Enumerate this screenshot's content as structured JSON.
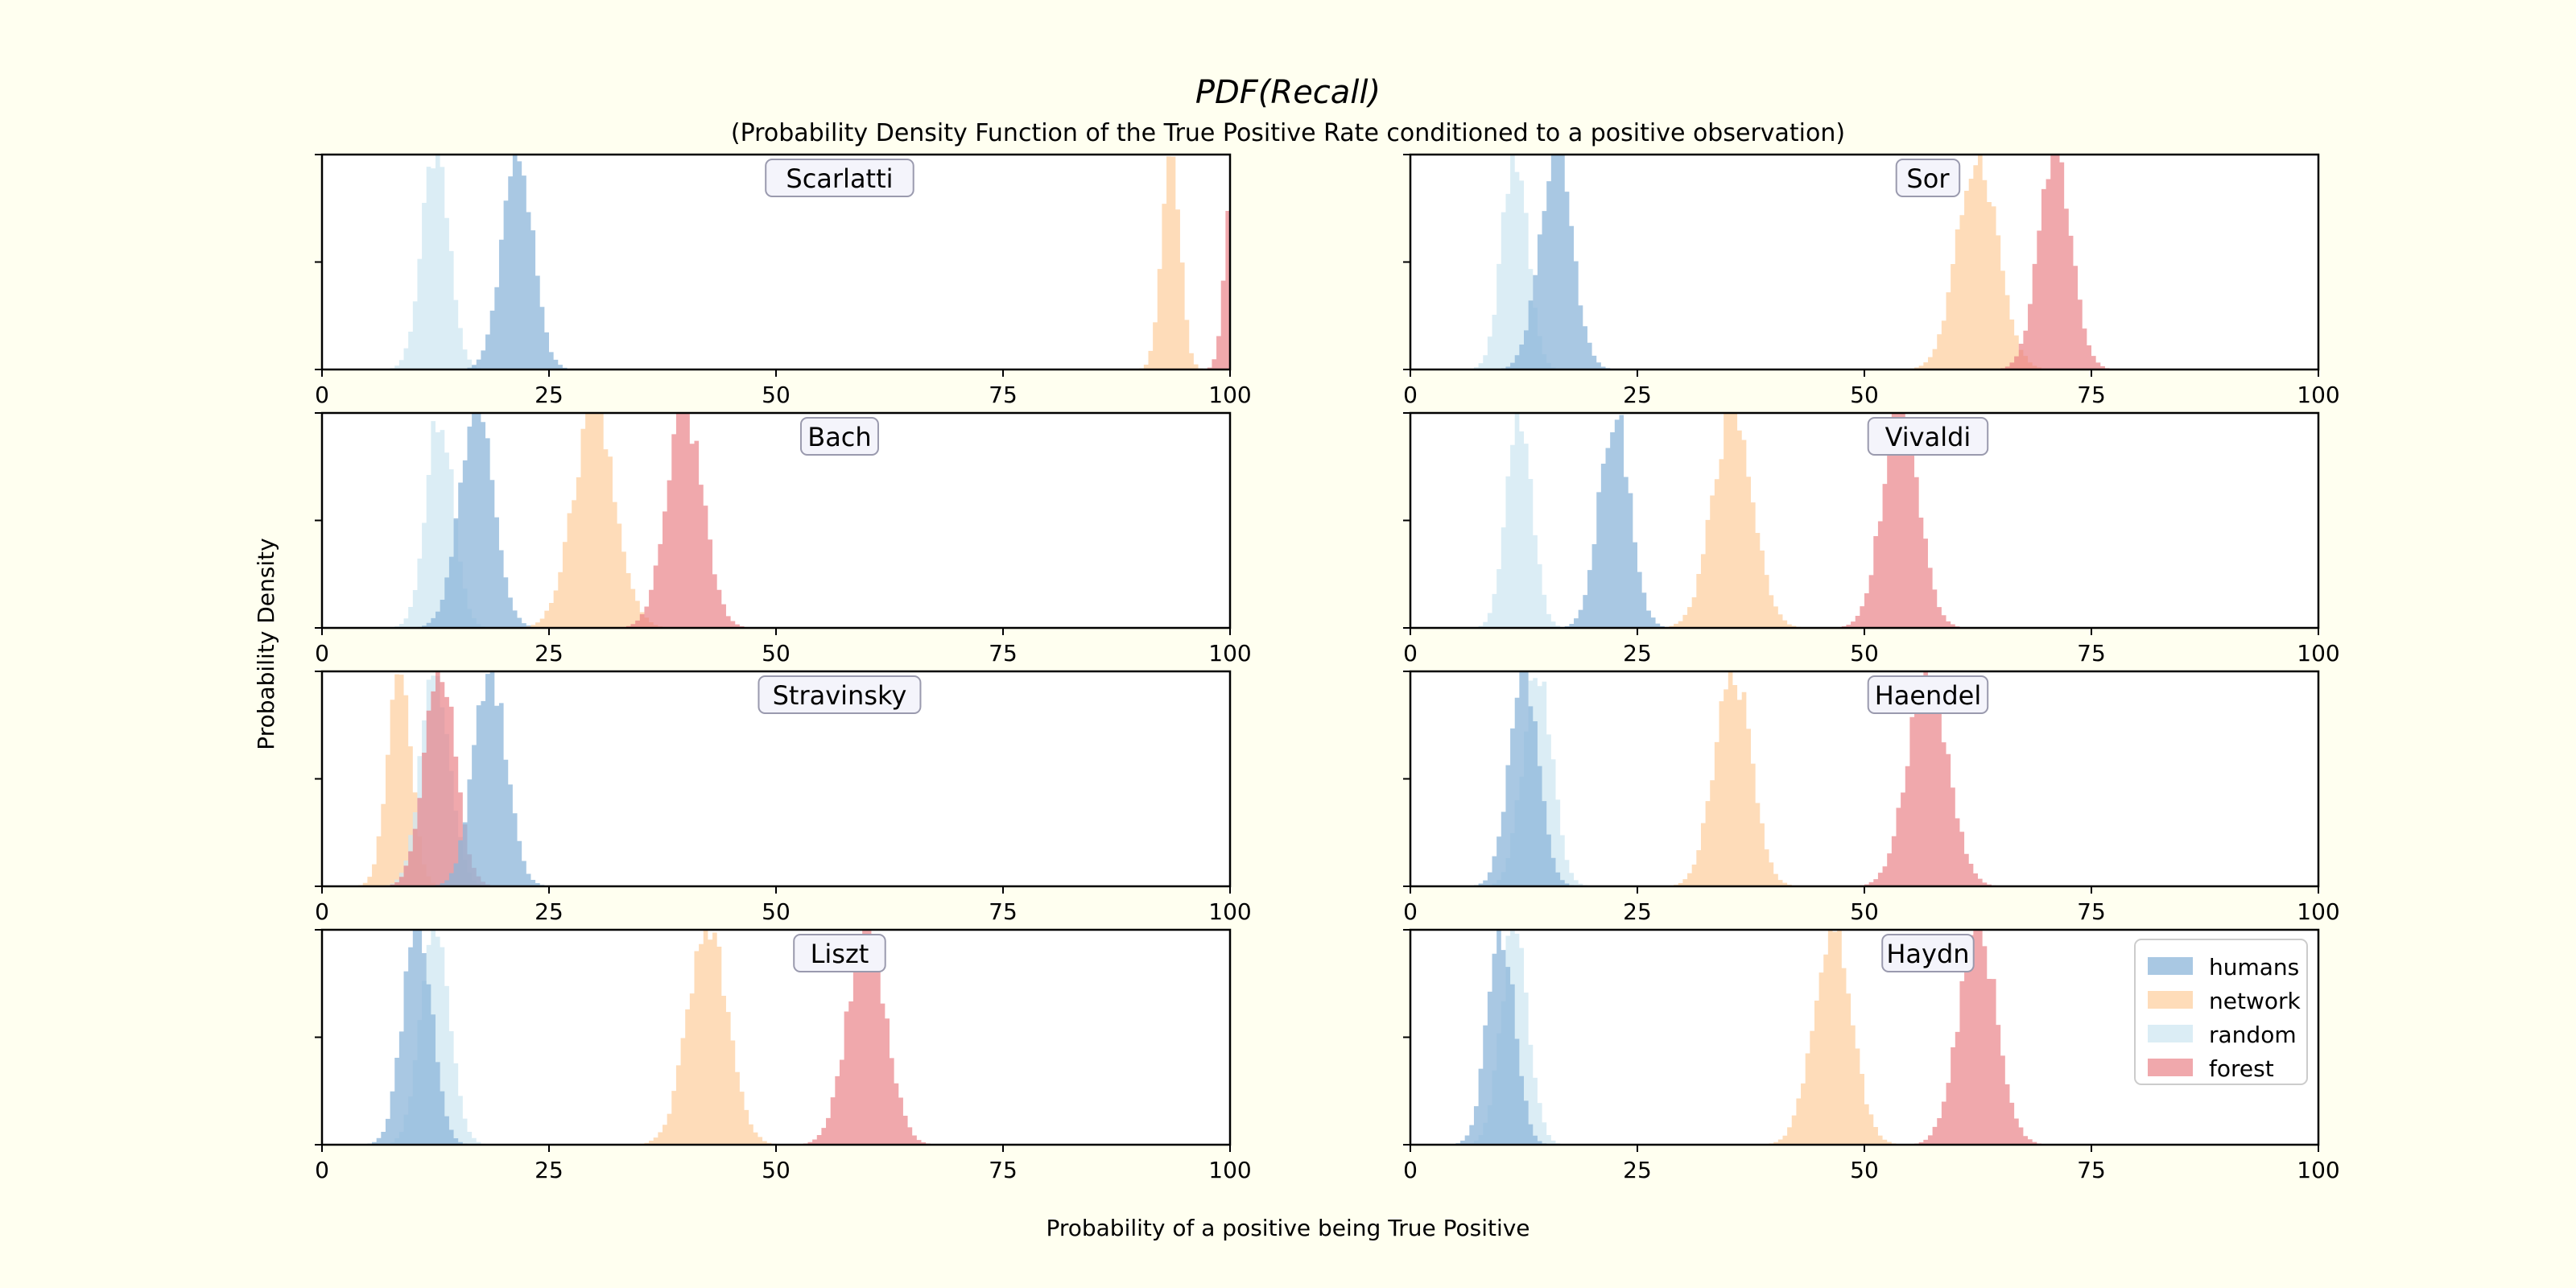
{
  "figure": {
    "title": "PDF(Recall)",
    "subtitle": "(Probability Density Function of the True Positive Rate conditioned to a positive observation)",
    "xlabel": "Probability of a positive being True Positive",
    "ylabel": "Probability Density"
  },
  "colors": {
    "humans": "#8cb6da",
    "network": "#fdd0a2",
    "random": "#cfe7f2",
    "forest": "#e87a80",
    "background": "#fffff0"
  },
  "legend": {
    "position": "lower-right of last panel",
    "entries": [
      {
        "key": "humans",
        "label": "humans"
      },
      {
        "key": "network",
        "label": "network"
      },
      {
        "key": "random",
        "label": "random"
      },
      {
        "key": "forest",
        "label": "forest"
      }
    ]
  },
  "chart_data": {
    "type": "histogram",
    "layout": "4 rows x 2 columns",
    "xlim": [
      0,
      100
    ],
    "xticks": [
      "0",
      "25",
      "50",
      "75",
      "100"
    ],
    "yticks_labels": "none",
    "panels": [
      {
        "name": "Scarlatti",
        "series": [
          {
            "key": "random",
            "mean": 12.5,
            "sd": 1.5
          },
          {
            "key": "humans",
            "mean": 21.5,
            "sd": 1.7
          },
          {
            "key": "network",
            "mean": 93.5,
            "sd": 1.0
          },
          {
            "key": "forest",
            "mean": 100.5,
            "sd": 0.9
          }
        ]
      },
      {
        "name": "Sor",
        "series": [
          {
            "key": "random",
            "mean": 11.5,
            "sd": 1.4
          },
          {
            "key": "humans",
            "mean": 16.0,
            "sd": 1.8
          },
          {
            "key": "network",
            "mean": 62.5,
            "sd": 2.2
          },
          {
            "key": "forest",
            "mean": 71.0,
            "sd": 1.8
          }
        ]
      },
      {
        "name": "Bach",
        "series": [
          {
            "key": "random",
            "mean": 13.0,
            "sd": 1.5
          },
          {
            "key": "humans",
            "mean": 17.0,
            "sd": 1.9
          },
          {
            "key": "network",
            "mean": 30.0,
            "sd": 2.3
          },
          {
            "key": "forest",
            "mean": 40.0,
            "sd": 2.0
          }
        ]
      },
      {
        "name": "Vivaldi",
        "series": [
          {
            "key": "random",
            "mean": 12.0,
            "sd": 1.4
          },
          {
            "key": "humans",
            "mean": 22.5,
            "sd": 1.7
          },
          {
            "key": "network",
            "mean": 35.5,
            "sd": 2.2
          },
          {
            "key": "forest",
            "mean": 54.0,
            "sd": 2.0
          }
        ]
      },
      {
        "name": "Stravinsky",
        "series": [
          {
            "key": "network",
            "mean": 8.5,
            "sd": 1.3
          },
          {
            "key": "random",
            "mean": 12.5,
            "sd": 1.6
          },
          {
            "key": "forest",
            "mean": 13.0,
            "sd": 1.7
          },
          {
            "key": "humans",
            "mean": 18.5,
            "sd": 1.8
          }
        ]
      },
      {
        "name": "Haendel",
        "series": [
          {
            "key": "random",
            "mean": 14.0,
            "sd": 1.6
          },
          {
            "key": "humans",
            "mean": 12.5,
            "sd": 1.6
          },
          {
            "key": "network",
            "mean": 35.5,
            "sd": 2.0
          },
          {
            "key": "forest",
            "mean": 57.0,
            "sd": 2.2
          }
        ]
      },
      {
        "name": "Liszt",
        "series": [
          {
            "key": "random",
            "mean": 12.5,
            "sd": 1.6
          },
          {
            "key": "humans",
            "mean": 10.5,
            "sd": 1.6
          },
          {
            "key": "network",
            "mean": 42.5,
            "sd": 2.2
          },
          {
            "key": "forest",
            "mean": 60.0,
            "sd": 2.1
          }
        ]
      },
      {
        "name": "Haydn",
        "series": [
          {
            "key": "random",
            "mean": 11.5,
            "sd": 1.5
          },
          {
            "key": "humans",
            "mean": 10.0,
            "sd": 1.5
          },
          {
            "key": "network",
            "mean": 46.5,
            "sd": 2.1
          },
          {
            "key": "forest",
            "mean": 62.5,
            "sd": 2.1
          }
        ]
      }
    ]
  }
}
